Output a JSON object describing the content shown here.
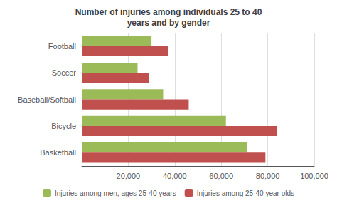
{
  "chart_data": {
    "type": "bar",
    "orientation": "horizontal",
    "title": "Number of injuries among individuals 25 to 40\nyears and by gender",
    "categories": [
      "Football",
      "Soccer",
      "Baseball/Softball",
      "Bicycle",
      "Basketball"
    ],
    "series": [
      {
        "name": "Injuries among men, ages 25-40 years",
        "color": "#9BBB59",
        "values": [
          30000,
          24000,
          35000,
          62000,
          71000
        ]
      },
      {
        "name": "Injuries among 25-40 year olds",
        "color": "#C0504D",
        "values": [
          37000,
          29000,
          46000,
          84000,
          79000
        ]
      }
    ],
    "xlim": [
      0,
      100000
    ],
    "xticks": [
      {
        "value": 0,
        "label": "-"
      },
      {
        "value": 20000,
        "label": "20,000"
      },
      {
        "value": 40000,
        "label": "40,000"
      },
      {
        "value": 60000,
        "label": "60,000"
      },
      {
        "value": 80000,
        "label": "80,000"
      },
      {
        "value": 100000,
        "label": "100,000"
      }
    ],
    "grid": true,
    "legend": "bottom"
  }
}
